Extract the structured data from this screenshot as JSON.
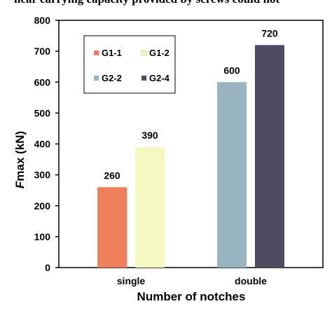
{
  "caption_top": "hear carrying capacity provided by screws could not",
  "caption_bottom": "",
  "chart_data": {
    "type": "bar",
    "categories": [
      "single",
      "double"
    ],
    "series": [
      {
        "name": "G1-1",
        "color": "#f07f5c",
        "values": [
          260,
          null
        ]
      },
      {
        "name": "G1-2",
        "color": "#f6f8c2",
        "values": [
          390,
          null
        ]
      },
      {
        "name": "G2-2",
        "color": "#98b4c0",
        "values": [
          null,
          600
        ]
      },
      {
        "name": "G2-4",
        "color": "#4e4c61",
        "values": [
          null,
          720
        ]
      }
    ],
    "title": "",
    "xlabel": "Number of notches",
    "ylabel": "Fmax (kN)",
    "ylabel_italic_part": "F",
    "ylabel_rest": "max (kN)",
    "ylim": [
      0,
      800
    ],
    "yticks": [
      0,
      100,
      200,
      300,
      400,
      500,
      600,
      700,
      800
    ],
    "grid": false,
    "legend_position": "top-left"
  }
}
